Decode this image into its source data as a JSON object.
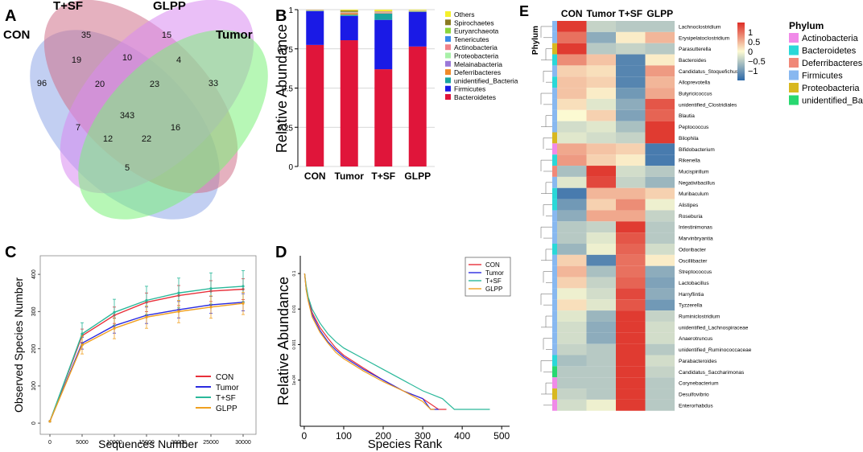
{
  "panel_labels": {
    "A": "A",
    "B": "B",
    "C": "C",
    "D": "D",
    "E": "E"
  },
  "venn": {
    "sets": [
      "CON",
      "T+SF",
      "GLPP",
      "Tumor"
    ],
    "regions": {
      "con_only": "96",
      "tsf_only": "35",
      "glpp_only": "15",
      "tumor_only": "33",
      "con_tsf": "19",
      "tsf_glpp": "10",
      "glpp_tumor": "4",
      "con_tsf_glpp": "20",
      "tsf_glpp_tumor": "23",
      "all": "343",
      "con_tsf_tumor": "7",
      "con_glpp_tumor": "16",
      "con_glpp": "12",
      "tsf_tumor": "22",
      "con_tumor": "5"
    },
    "colors": {
      "CON": "#8fa8e8",
      "T+SF": "#d0718a",
      "GLPP": "#d98af0",
      "Tumor": "#7cf07a"
    }
  },
  "chart_data": [
    {
      "type": "bar",
      "panel": "B",
      "title": "",
      "xlabel": "",
      "ylabel": "Relative Abundance",
      "ylim": [
        0,
        1
      ],
      "yticks": [
        "0",
        "0.25",
        "0.5",
        "0.75",
        "1"
      ],
      "categories": [
        "CON",
        "Tumor",
        "T+SF",
        "GLPP"
      ],
      "series": [
        {
          "name": "Bacteroidetes",
          "color": "#e0153a",
          "values": [
            0.775,
            0.805,
            0.62,
            0.765
          ]
        },
        {
          "name": "Firmicutes",
          "color": "#1a1ae6",
          "values": [
            0.215,
            0.155,
            0.315,
            0.22
          ]
        },
        {
          "name": "unidentified_Bacteria",
          "color": "#1aa5a0",
          "values": [
            0.002,
            0.008,
            0.04,
            0.003
          ]
        },
        {
          "name": "Deferribacteres",
          "color": "#f08a28",
          "values": [
            0.001,
            0.01,
            0.003,
            0.002
          ]
        },
        {
          "name": "Melainabacteria",
          "color": "#9a78d8",
          "values": [
            0.001,
            0.002,
            0.002,
            0.001
          ]
        },
        {
          "name": "Proteobacteria",
          "color": "#a8f0a8",
          "values": [
            0.001,
            0.002,
            0.002,
            0.001
          ]
        },
        {
          "name": "Actinobacteria",
          "color": "#f0828a",
          "values": [
            0.002,
            0.003,
            0.006,
            0.002
          ]
        },
        {
          "name": "Tenericutes",
          "color": "#3a8ae8",
          "values": [
            0.0005,
            0.0005,
            0.0005,
            0.0005
          ]
        },
        {
          "name": "Euryarchaeota",
          "color": "#8ad63a",
          "values": [
            0.0005,
            0.001,
            0.001,
            0.0005
          ]
        },
        {
          "name": "Spirochaetes",
          "color": "#8a7a20",
          "values": [
            0.0005,
            0.008,
            0.001,
            0.0005
          ]
        },
        {
          "name": "Others",
          "color": "#f5f02a",
          "values": [
            0.0015,
            0.0055,
            0.0095,
            0.004
          ]
        }
      ],
      "legend_order": [
        "Others",
        "Spirochaetes",
        "Euryarchaeota",
        "Tenericutes",
        "Actinobacteria",
        "Proteobacteria",
        "Melainabacteria",
        "Deferribacteres",
        "unidentified_Bacteria",
        "Firmicutes",
        "Bacteroidetes"
      ]
    },
    {
      "type": "line",
      "panel": "C",
      "xlabel": "Sequences Number",
      "ylabel": "Observed Species Number",
      "xlim": [
        -1500,
        32000
      ],
      "ylim": [
        -30,
        450
      ],
      "xticks": [
        "0",
        "5000",
        "10000",
        "15000",
        "20000",
        "25000",
        "30000"
      ],
      "yticks": [
        "0",
        "100",
        "200",
        "300",
        "400"
      ],
      "x": [
        0,
        5000,
        10000,
        15000,
        20000,
        25000,
        30000
      ],
      "series": [
        {
          "name": "CON",
          "color": "#e8303a",
          "values": [
            5,
            235,
            290,
            325,
            343,
            355,
            360
          ],
          "err": [
            0,
            18,
            22,
            25,
            27,
            28,
            28
          ]
        },
        {
          "name": "Tumor",
          "color": "#2a2ae0",
          "values": [
            5,
            215,
            262,
            290,
            305,
            318,
            325
          ],
          "err": [
            0,
            16,
            20,
            22,
            22,
            23,
            23
          ]
        },
        {
          "name": "T+SF",
          "color": "#2ab89a",
          "values": [
            5,
            240,
            298,
            330,
            350,
            362,
            368
          ],
          "err": [
            0,
            30,
            35,
            38,
            40,
            42,
            42
          ]
        },
        {
          "name": "GLPP",
          "color": "#f0a020",
          "values": [
            5,
            210,
            255,
            285,
            300,
            312,
            322
          ],
          "err": [
            0,
            24,
            28,
            30,
            30,
            30,
            30
          ]
        }
      ]
    },
    {
      "type": "line",
      "panel": "D",
      "xlabel": "Species Rank",
      "ylabel": "Relative Abundance",
      "xlim": [
        -10,
        520
      ],
      "xticks": [
        "0",
        "100",
        "200",
        "300",
        "400",
        "500"
      ],
      "ytick_labels": [
        "0.1",
        "0.01",
        "0.001",
        "1e-04"
      ],
      "yscale": "log",
      "ylim_log10": [
        -5.3,
        -0.5
      ],
      "series": [
        {
          "name": "CON",
          "color": "#e8303a",
          "ranks": [
            1,
            5,
            10,
            20,
            40,
            60,
            80,
            100,
            150,
            200,
            250,
            300,
            340,
            360
          ],
          "values": [
            0.1,
            0.04,
            0.02,
            0.008,
            0.003,
            0.0015,
            0.0008,
            0.0005,
            0.00022,
            0.0001,
            5e-05,
            3e-05,
            1.5e-05,
            1.5e-05
          ]
        },
        {
          "name": "Tumor",
          "color": "#2a2ae0",
          "ranks": [
            1,
            5,
            10,
            20,
            40,
            60,
            80,
            100,
            150,
            200,
            250,
            300,
            320,
            340
          ],
          "values": [
            0.1,
            0.035,
            0.018,
            0.007,
            0.0025,
            0.0012,
            0.0007,
            0.00045,
            0.0002,
            0.0001,
            5e-05,
            3e-05,
            1.5e-05,
            1.5e-05
          ]
        },
        {
          "name": "T+SF",
          "color": "#2ab89a",
          "ranks": [
            1,
            5,
            10,
            20,
            40,
            60,
            80,
            100,
            150,
            200,
            250,
            300,
            350,
            380,
            470
          ],
          "values": [
            0.1,
            0.045,
            0.022,
            0.01,
            0.004,
            0.002,
            0.0012,
            0.0008,
            0.0004,
            0.0002,
            0.0001,
            5e-05,
            3e-05,
            1.5e-05,
            1.5e-05
          ]
        },
        {
          "name": "GLPP",
          "color": "#f0a020",
          "ranks": [
            1,
            5,
            10,
            20,
            40,
            60,
            80,
            100,
            150,
            200,
            250,
            300,
            320,
            330
          ],
          "values": [
            0.1,
            0.035,
            0.017,
            0.006,
            0.0022,
            0.0011,
            0.0006,
            0.0004,
            0.00018,
            9e-05,
            5e-05,
            2.5e-05,
            1.5e-05,
            1.5e-05
          ]
        }
      ]
    },
    {
      "type": "heatmap",
      "panel": "E",
      "columns": [
        "CON",
        "Tumor",
        "T+SF",
        "GLPP"
      ],
      "row_annotation_title": "Phylum",
      "scale_title": "",
      "scale_ticks": [
        "1",
        "0.5",
        "0",
        "−0.5",
        "−1"
      ],
      "phylum_legend_title": "Phylum",
      "phyla": [
        {
          "name": "Actinobacteria",
          "color": "#f08ae8"
        },
        {
          "name": "Bacteroidetes",
          "color": "#2ad8d8"
        },
        {
          "name": "Deferribacteres",
          "color": "#f08878"
        },
        {
          "name": "Firmicutes",
          "color": "#88b8f0"
        },
        {
          "name": "Proteobacteria",
          "color": "#d8b820"
        },
        {
          "name": "unidentified_Bacteria",
          "color": "#28d870"
        }
      ],
      "rows": [
        {
          "name": "Lachnoclostridium",
          "phylum": 3,
          "values": [
            1.4,
            -0.4,
            -0.5,
            -0.5
          ]
        },
        {
          "name": "Erysipelatoclostridium",
          "phylum": 3,
          "values": [
            1.0,
            -0.8,
            0.1,
            0.5
          ]
        },
        {
          "name": "Parasutterella",
          "phylum": 4,
          "values": [
            1.4,
            -0.5,
            -0.4,
            -0.5
          ]
        },
        {
          "name": "Bacteroides",
          "phylum": 1,
          "values": [
            0.8,
            0.4,
            -1.2,
            0.1
          ]
        },
        {
          "name": "Candidatus_Stoquefichus",
          "phylum": 3,
          "values": [
            0.3,
            0.2,
            -1.2,
            0.7
          ]
        },
        {
          "name": "Alloprevotella",
          "phylum": 1,
          "values": [
            0.4,
            0.3,
            -1.2,
            0.5
          ]
        },
        {
          "name": "Butyricicoccus",
          "phylum": 3,
          "values": [
            0.4,
            0.1,
            -1.0,
            0.6
          ]
        },
        {
          "name": "unidentified_Clostridiales",
          "phylum": 3,
          "values": [
            0.2,
            -0.2,
            -0.8,
            1.2
          ]
        },
        {
          "name": "Blautia",
          "phylum": 3,
          "values": [
            0.0,
            0.3,
            -0.9,
            1.1
          ]
        },
        {
          "name": "Peptococcus",
          "phylum": 3,
          "values": [
            -0.3,
            -0.2,
            -0.6,
            1.4
          ]
        },
        {
          "name": "Bilophila",
          "phylum": 4,
          "values": [
            -0.2,
            -0.3,
            -0.4,
            1.4
          ]
        },
        {
          "name": "Bifidobacterium",
          "phylum": 0,
          "values": [
            0.6,
            0.4,
            0.3,
            -1.3
          ]
        },
        {
          "name": "Rikenella",
          "phylum": 1,
          "values": [
            0.7,
            0.3,
            0.1,
            -1.3
          ]
        },
        {
          "name": "Mucispirillum",
          "phylum": 2,
          "values": [
            -0.6,
            1.4,
            -0.3,
            -0.5
          ]
        },
        {
          "name": "Negativibacillus",
          "phylum": 3,
          "values": [
            -0.2,
            1.3,
            -0.4,
            -0.7
          ]
        },
        {
          "name": "Muribaculum",
          "phylum": 1,
          "values": [
            -1.3,
            0.5,
            0.5,
            0.3
          ]
        },
        {
          "name": "Alistipes",
          "phylum": 1,
          "values": [
            -1.0,
            0.3,
            0.8,
            -0.1
          ]
        },
        {
          "name": "Roseburia",
          "phylum": 3,
          "values": [
            -0.8,
            0.6,
            0.6,
            -0.4
          ]
        },
        {
          "name": "Intestinimonas",
          "phylum": 3,
          "values": [
            -0.5,
            -0.4,
            1.4,
            -0.5
          ]
        },
        {
          "name": "Marvinbryantia",
          "phylum": 3,
          "values": [
            -0.5,
            -0.2,
            1.2,
            -0.5
          ]
        },
        {
          "name": "Odoribacter",
          "phylum": 1,
          "values": [
            -0.7,
            -0.1,
            1.1,
            -0.3
          ]
        },
        {
          "name": "Oscillibacter",
          "phylum": 3,
          "values": [
            0.3,
            -1.2,
            1.0,
            0.1
          ]
        },
        {
          "name": "Streptococcus",
          "phylum": 3,
          "values": [
            0.5,
            -0.6,
            1.0,
            -0.8
          ]
        },
        {
          "name": "Lactobacillus",
          "phylum": 3,
          "values": [
            0.3,
            -0.4,
            1.1,
            -0.9
          ]
        },
        {
          "name": "Harryflintia",
          "phylum": 3,
          "values": [
            -0.1,
            -0.3,
            1.3,
            -0.8
          ]
        },
        {
          "name": "Tyzzerella",
          "phylum": 3,
          "values": [
            0.2,
            -0.2,
            1.2,
            -1.0
          ]
        },
        {
          "name": "Ruminiclostridium",
          "phylum": 3,
          "values": [
            -0.2,
            -0.7,
            1.4,
            -0.4
          ]
        },
        {
          "name": "unidentified_Lachnospiraceae",
          "phylum": 3,
          "values": [
            -0.3,
            -0.8,
            1.4,
            -0.3
          ]
        },
        {
          "name": "Anaerotruncus",
          "phylum": 3,
          "values": [
            -0.3,
            -0.8,
            1.4,
            -0.3
          ]
        },
        {
          "name": "unidentified_Ruminococcaceae",
          "phylum": 3,
          "values": [
            -0.4,
            -0.5,
            1.4,
            -0.5
          ]
        },
        {
          "name": "Parabacteroides",
          "phylum": 1,
          "values": [
            -0.6,
            -0.5,
            1.4,
            -0.3
          ]
        },
        {
          "name": "Candidatus_Saccharimonas",
          "phylum": 5,
          "values": [
            -0.5,
            -0.5,
            1.4,
            -0.4
          ]
        },
        {
          "name": "Corynebacterium",
          "phylum": 0,
          "values": [
            -0.5,
            -0.5,
            1.4,
            -0.5
          ]
        },
        {
          "name": "Desulfovibrio",
          "phylum": 4,
          "values": [
            -0.4,
            -0.5,
            1.4,
            -0.5
          ]
        },
        {
          "name": "Enterorhabdus",
          "phylum": 0,
          "values": [
            -0.3,
            -0.1,
            1.4,
            -0.5
          ]
        }
      ]
    }
  ]
}
